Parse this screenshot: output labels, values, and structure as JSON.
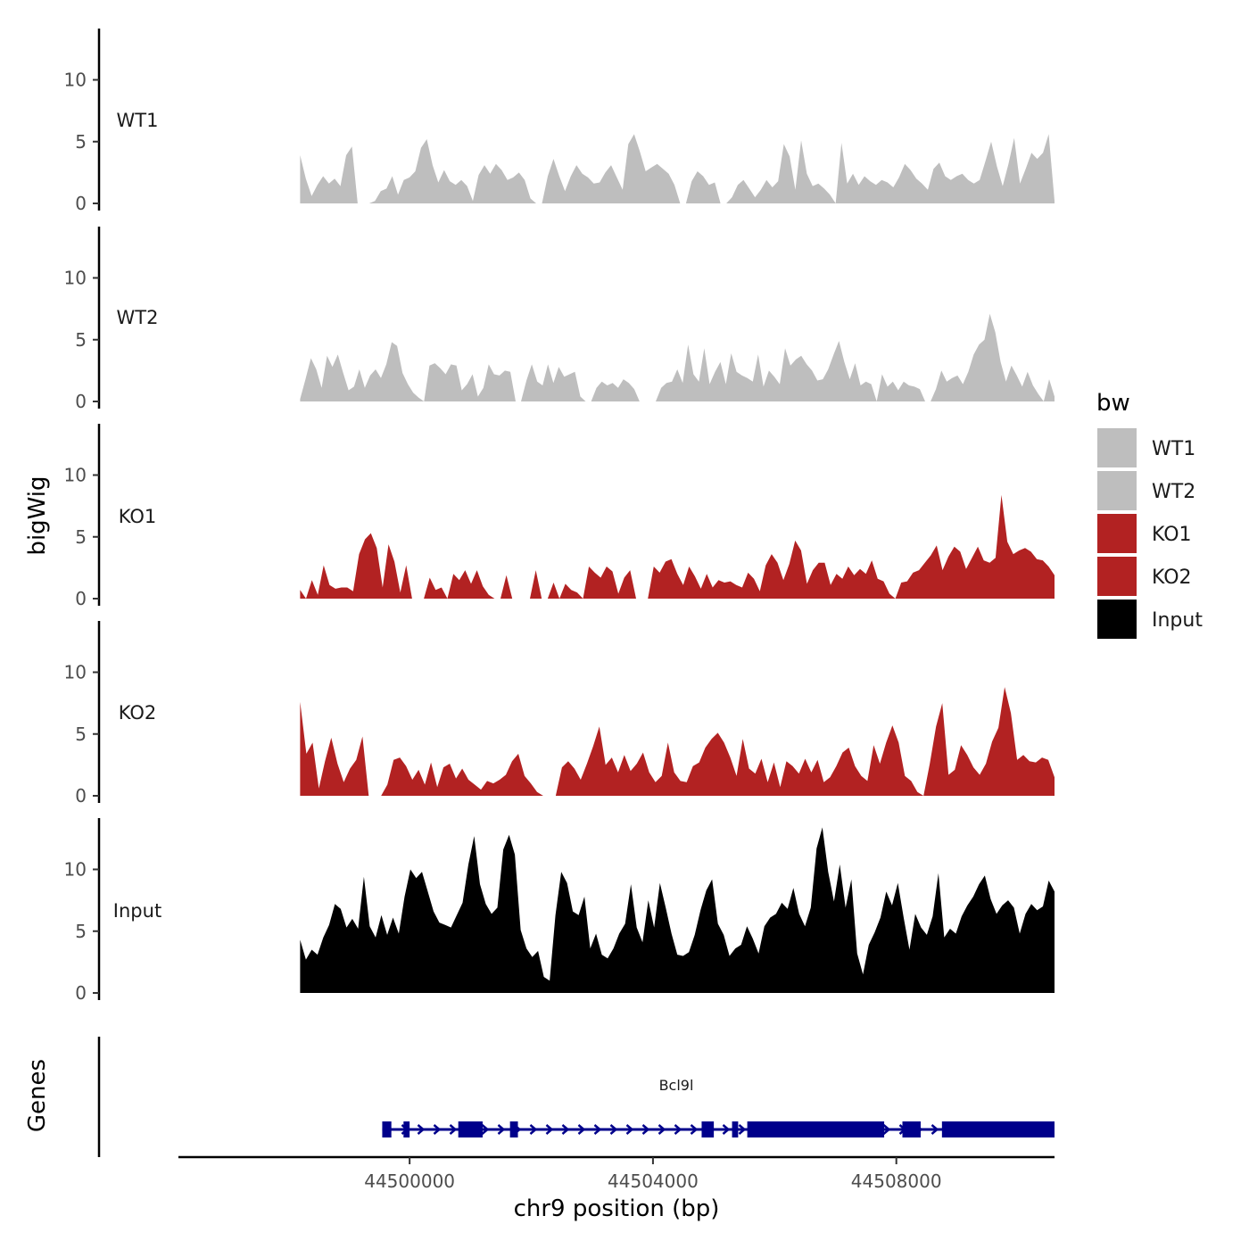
{
  "chart_data": {
    "type": "area",
    "title": "",
    "ylabel": "bigWig",
    "gene_panel_label": "Genes",
    "xlabel": "chr9 position (bp)",
    "xlim": [
      44496200,
      44510600
    ],
    "x_ticks": [
      {
        "value": 44500000,
        "label": "44500000"
      },
      {
        "value": 44504000,
        "label": "44504000"
      },
      {
        "value": 44508000,
        "label": "44508000"
      }
    ],
    "ylim": [
      0,
      14
    ],
    "y_ticks": [
      {
        "value": 0,
        "label": "0"
      },
      {
        "value": 5,
        "label": "5"
      },
      {
        "value": 10,
        "label": "10"
      }
    ],
    "legend": {
      "title": "bw",
      "position": "right",
      "items": [
        {
          "label": "WT1",
          "color": "#BEBEBE"
        },
        {
          "label": "WT2",
          "color": "#BEBEBE"
        },
        {
          "label": "KO1",
          "color": "#B22222"
        },
        {
          "label": "KO2",
          "color": "#B22222"
        },
        {
          "label": "Input",
          "color": "#000000"
        }
      ]
    },
    "series": [
      {
        "name": "WT1",
        "color": "#BEBEBE",
        "x_start": 44498200,
        "x_end": 44510600,
        "values": [
          3.9,
          2,
          0.6,
          1.5,
          2.2,
          1.6,
          2,
          1.4,
          3.9,
          4.6,
          0,
          0,
          0,
          0.2,
          1,
          1.2,
          2.2,
          0.7,
          1.9,
          2.1,
          2.6,
          4.5,
          5.2,
          3.1,
          1.7,
          2.7,
          1.8,
          1.5,
          1.9,
          1.4,
          0.2,
          2.3,
          3.1,
          2.4,
          3.2,
          2.7,
          1.9,
          2.1,
          2.5,
          1.9,
          0.4,
          0,
          0,
          2.2,
          3.6,
          2.2,
          1,
          2.2,
          3.1,
          2.4,
          2.1,
          1.6,
          1.7,
          2.5,
          3.1,
          2.1,
          1.1,
          4.8,
          5.6,
          4.2,
          2.6,
          2.9,
          3.2,
          2.8,
          2.4,
          1.5,
          0,
          0,
          1.8,
          2.6,
          2.2,
          1.5,
          1.7,
          0,
          0,
          0.5,
          1.5,
          1.9,
          1.2,
          0.5,
          1.1,
          1.9,
          1.3,
          1.8,
          4.8,
          3.8,
          1.1,
          5.1,
          2.4,
          1.4,
          1.6,
          1.2,
          0.7,
          0,
          4.9,
          1.6,
          2.4,
          1.5,
          2.2,
          1.8,
          1.5,
          1.9,
          1.7,
          1.3,
          2.1,
          3.2,
          2.7,
          2,
          1.6,
          1.1,
          2.8,
          3.3,
          2.2,
          1.9,
          2.2,
          2.4,
          1.9,
          1.6,
          1.9,
          3.4,
          5,
          3,
          1.4,
          3.2,
          5.3,
          1.6,
          2.8,
          4.1,
          3.6,
          4.1,
          5.6,
          0.2
        ],
        "gaps": [
          [
            44499200,
            44499800
          ],
          [
            44513200,
            44513200
          ]
        ]
      },
      {
        "name": "WT2",
        "color": "#BEBEBE",
        "x_start": 44498200,
        "x_end": 44510600,
        "values": [
          0.2,
          1.8,
          3.5,
          2.6,
          1.1,
          3.7,
          2.8,
          3.8,
          2.3,
          0.9,
          1.2,
          2.6,
          1.1,
          2.1,
          2.6,
          1.9,
          3,
          4.8,
          4.5,
          2.3,
          1.4,
          0.7,
          0.3,
          0,
          2.9,
          3.1,
          2.7,
          2.2,
          3,
          2.9,
          0.9,
          1.4,
          2.2,
          0.4,
          1.1,
          3,
          2.2,
          2.1,
          2.5,
          2.4,
          0,
          0,
          1.7,
          3,
          1.6,
          1.3,
          3,
          1.5,
          2.8,
          2,
          2.2,
          2.4,
          0.4,
          0,
          0,
          1.1,
          1.6,
          1.3,
          1.5,
          1.1,
          1.8,
          1.5,
          1,
          0,
          0,
          0,
          0,
          1.1,
          1.5,
          1.6,
          2.6,
          1.5,
          4.6,
          2.2,
          1.6,
          4.3,
          1.4,
          2.4,
          3.2,
          1.4,
          3.9,
          2.4,
          2.1,
          1.9,
          1.6,
          3.8,
          1.2,
          2.5,
          2,
          1.4,
          4.3,
          2.9,
          3.4,
          3.7,
          3,
          2.5,
          1.7,
          1.8,
          2.6,
          3.8,
          4.9,
          3.2,
          1.8,
          3.1,
          1.3,
          1.6,
          1.4,
          0,
          2.2,
          1.2,
          1.6,
          0.9,
          1.6,
          1.3,
          1.2,
          1,
          0,
          0,
          1,
          2.5,
          1.6,
          1.9,
          2.1,
          1.4,
          2.4,
          3.8,
          4.6,
          5,
          7.1,
          5.6,
          3.2,
          1.6,
          2.9,
          2.1,
          1.2,
          2.4,
          1.3,
          0.6,
          0,
          1.8,
          0.4
        ],
        "gaps": []
      },
      {
        "name": "KO1",
        "color": "#B22222",
        "x_start": 44498200,
        "x_end": 44510600,
        "values": [
          0.7,
          0,
          1.5,
          0.3,
          2.7,
          1.1,
          0.8,
          0.9,
          0.9,
          0.6,
          3.6,
          4.8,
          5.3,
          4.1,
          0.9,
          4.4,
          3,
          0.5,
          2.7,
          0,
          0,
          0,
          1.7,
          0.7,
          0.9,
          0,
          2,
          1.5,
          2.3,
          1.2,
          2.3,
          1,
          0.3,
          0,
          0,
          1.9,
          0,
          0,
          0,
          0,
          2.3,
          0,
          0,
          1.3,
          0,
          1.2,
          0.7,
          0.5,
          0,
          2.6,
          2.1,
          1.7,
          2.6,
          2.2,
          0.4,
          1.7,
          2.3,
          0,
          0,
          0,
          2.6,
          2.1,
          3,
          3.2,
          2,
          1.1,
          2.6,
          1.8,
          0.8,
          2,
          0.9,
          1.5,
          1.3,
          1.4,
          1.1,
          0.9,
          2.1,
          1.6,
          0.6,
          2.7,
          3.6,
          2.9,
          1.5,
          2.8,
          4.7,
          3.9,
          1.2,
          2.3,
          2.9,
          2.9,
          1.1,
          2,
          1.6,
          2.6,
          1.9,
          2.4,
          2,
          3.1,
          1.6,
          1.4,
          0.4,
          0,
          1.3,
          1.4,
          2.1,
          2.3,
          2.9,
          3.5,
          4.3,
          2.3,
          3.4,
          4.2,
          3.8,
          2.4,
          3.3,
          4.2,
          3.1,
          2.9,
          3.3,
          8.4,
          4.6,
          3.6,
          3.9,
          4.1,
          3.8,
          3.2,
          3.1,
          2.6,
          1.9
        ],
        "gaps": [
          [
            44501500,
            44502000
          ]
        ]
      },
      {
        "name": "KO2",
        "color": "#B22222",
        "x_start": 44498200,
        "x_end": 44510600,
        "values": [
          7.6,
          3.4,
          4.3,
          0.6,
          2.8,
          4.7,
          2.6,
          1.1,
          2.2,
          2.9,
          4.8,
          0,
          0,
          0,
          0.9,
          2.9,
          3.1,
          2.4,
          1.3,
          2.1,
          0.9,
          2.7,
          0.7,
          2.3,
          2.6,
          1.4,
          2.2,
          1.3,
          0.9,
          0.5,
          1.2,
          1,
          1.3,
          1.7,
          2.8,
          3.4,
          1.6,
          1,
          0.3,
          0,
          0,
          0,
          2.3,
          2.8,
          2.2,
          1.3,
          2.6,
          4,
          5.6,
          2.5,
          3.1,
          1.9,
          3.3,
          2,
          2.6,
          3.5,
          1.9,
          1.1,
          1.6,
          4.3,
          1.9,
          1.2,
          1.1,
          2.4,
          2.7,
          3.9,
          4.6,
          5.1,
          4.3,
          3.1,
          1.6,
          4.6,
          2.2,
          1.8,
          3,
          1.1,
          2.7,
          0.7,
          2.8,
          2.4,
          1.8,
          3,
          1.9,
          2.9,
          1.1,
          1.5,
          2.4,
          3.5,
          3.9,
          2.4,
          1.6,
          1.2,
          4.1,
          2.6,
          4.3,
          5.7,
          4.3,
          1.6,
          1.2,
          0.3,
          0,
          2.6,
          5.6,
          7.5,
          1.7,
          2.1,
          4.1,
          3.3,
          2.3,
          1.7,
          2.6,
          4.4,
          5.5,
          8.8,
          6.7,
          2.9,
          3.3,
          2.8,
          2.7,
          3.1,
          2.9,
          1.5
        ],
        "gaps": [
          [
            44502300,
            44502500
          ]
        ]
      },
      {
        "name": "Input",
        "color": "#000000",
        "x_start": 44498200,
        "x_end": 44510600,
        "values": [
          4.3,
          2.7,
          3.5,
          3.1,
          4.5,
          5.5,
          7.2,
          6.8,
          5.3,
          6,
          5.2,
          9.4,
          5.4,
          4.5,
          6.3,
          4.7,
          6.1,
          4.8,
          7.8,
          10,
          9.3,
          9.8,
          8.2,
          6.6,
          5.7,
          5.5,
          5.3,
          6.3,
          7.3,
          10.4,
          12.7,
          8.8,
          7.2,
          6.4,
          6.9,
          11.6,
          12.8,
          11.2,
          5.1,
          3.6,
          2.9,
          3.4,
          1.3,
          1,
          6.3,
          9.8,
          8.9,
          6.6,
          6.3,
          7.8,
          3.6,
          4.8,
          3.1,
          2.8,
          3.6,
          4.8,
          5.6,
          8.8,
          5.3,
          4.1,
          7.5,
          5.3,
          8.9,
          6.9,
          4.8,
          3.1,
          3,
          3.3,
          4.7,
          6.7,
          8.3,
          9.2,
          5.6,
          4.7,
          3,
          3.6,
          3.9,
          5.4,
          4.4,
          3.2,
          5.4,
          6.1,
          6.4,
          7.3,
          6.8,
          8.5,
          6.4,
          5.4,
          6.9,
          11.7,
          13.4,
          9.8,
          7.4,
          10.4,
          6.9,
          9.2,
          3.2,
          1.5,
          3.9,
          4.9,
          6.1,
          8.2,
          7.1,
          8.9,
          6.1,
          3.5,
          6.4,
          5.3,
          4.7,
          6.2,
          9.7,
          4.5,
          5.2,
          4.8,
          6.2,
          7.1,
          7.8,
          8.8,
          9.5,
          7.6,
          6.4,
          7.1,
          7.5,
          6.9,
          4.8,
          6.4,
          7.2,
          6.7,
          7,
          9.1,
          8.2
        ],
        "gaps": []
      }
    ],
    "gene": {
      "name": "Bcl9l",
      "strand": "+",
      "color": "#00008B",
      "x_start": 44499550,
      "x_end": 44510600,
      "exons": [
        [
          44499550,
          44499700
        ],
        [
          44499900,
          44500000
        ],
        [
          44500800,
          44501200
        ],
        [
          44501650,
          44501780
        ],
        [
          44504800,
          44505000
        ],
        [
          44505300,
          44505400
        ],
        [
          44505550,
          44507800
        ],
        [
          44508100,
          44508400
        ],
        [
          44508750,
          44510600
        ]
      ]
    }
  }
}
